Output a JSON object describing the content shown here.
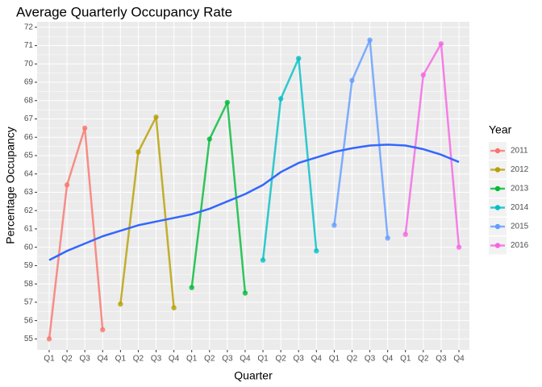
{
  "chart_data": {
    "type": "line",
    "title": "Average Quarterly Occupancy Rate",
    "x_label": "Quarter",
    "y_label": "Percentage Occupancy",
    "legend_title": "Year",
    "legend_position": "right",
    "grid": true,
    "categories": [
      "Q1",
      "Q2",
      "Q3",
      "Q4",
      "Q1",
      "Q2",
      "Q3",
      "Q4",
      "Q1",
      "Q2",
      "Q3",
      "Q4",
      "Q1",
      "Q2",
      "Q3",
      "Q4",
      "Q1",
      "Q2",
      "Q3",
      "Q4",
      "Q1",
      "Q2",
      "Q3",
      "Q4"
    ],
    "ylim": [
      54.4,
      72.3
    ],
    "yticks": [
      55,
      56,
      57,
      58,
      59,
      60,
      61,
      62,
      63,
      64,
      65,
      66,
      67,
      68,
      69,
      70,
      71,
      72
    ],
    "series": [
      {
        "name": "2011",
        "color": "#F8766D",
        "values": [
          55.0,
          63.4,
          66.5,
          55.5,
          null,
          null,
          null,
          null,
          null,
          null,
          null,
          null,
          null,
          null,
          null,
          null,
          null,
          null,
          null,
          null,
          null,
          null,
          null,
          null
        ]
      },
      {
        "name": "2012",
        "color": "#B79F00",
        "values": [
          null,
          null,
          null,
          null,
          56.9,
          65.2,
          67.1,
          56.7,
          null,
          null,
          null,
          null,
          null,
          null,
          null,
          null,
          null,
          null,
          null,
          null,
          null,
          null,
          null,
          null
        ]
      },
      {
        "name": "2013",
        "color": "#00BA38",
        "values": [
          null,
          null,
          null,
          null,
          null,
          null,
          null,
          null,
          57.8,
          65.9,
          67.9,
          57.5,
          null,
          null,
          null,
          null,
          null,
          null,
          null,
          null,
          null,
          null,
          null,
          null
        ]
      },
      {
        "name": "2014",
        "color": "#00BFC4",
        "values": [
          null,
          null,
          null,
          null,
          null,
          null,
          null,
          null,
          null,
          null,
          null,
          null,
          59.3,
          68.1,
          70.3,
          59.8,
          null,
          null,
          null,
          null,
          null,
          null,
          null,
          null
        ]
      },
      {
        "name": "2015",
        "color": "#619CFF",
        "values": [
          null,
          null,
          null,
          null,
          null,
          null,
          null,
          null,
          null,
          null,
          null,
          null,
          null,
          null,
          null,
          null,
          61.2,
          69.1,
          71.3,
          60.5,
          null,
          null,
          null,
          null
        ]
      },
      {
        "name": "2016",
        "color": "#F564E3",
        "values": [
          null,
          null,
          null,
          null,
          null,
          null,
          null,
          null,
          null,
          null,
          null,
          null,
          null,
          null,
          null,
          null,
          null,
          null,
          null,
          null,
          60.7,
          69.4,
          71.1,
          60.0
        ]
      }
    ],
    "trend": {
      "color": "#3366FF",
      "values": [
        59.3,
        59.8,
        60.2,
        60.6,
        60.9,
        61.2,
        61.4,
        61.6,
        61.8,
        62.1,
        62.5,
        62.9,
        63.4,
        64.1,
        64.6,
        64.9,
        65.2,
        65.4,
        65.55,
        65.6,
        65.55,
        65.35,
        65.05,
        64.65
      ]
    }
  }
}
